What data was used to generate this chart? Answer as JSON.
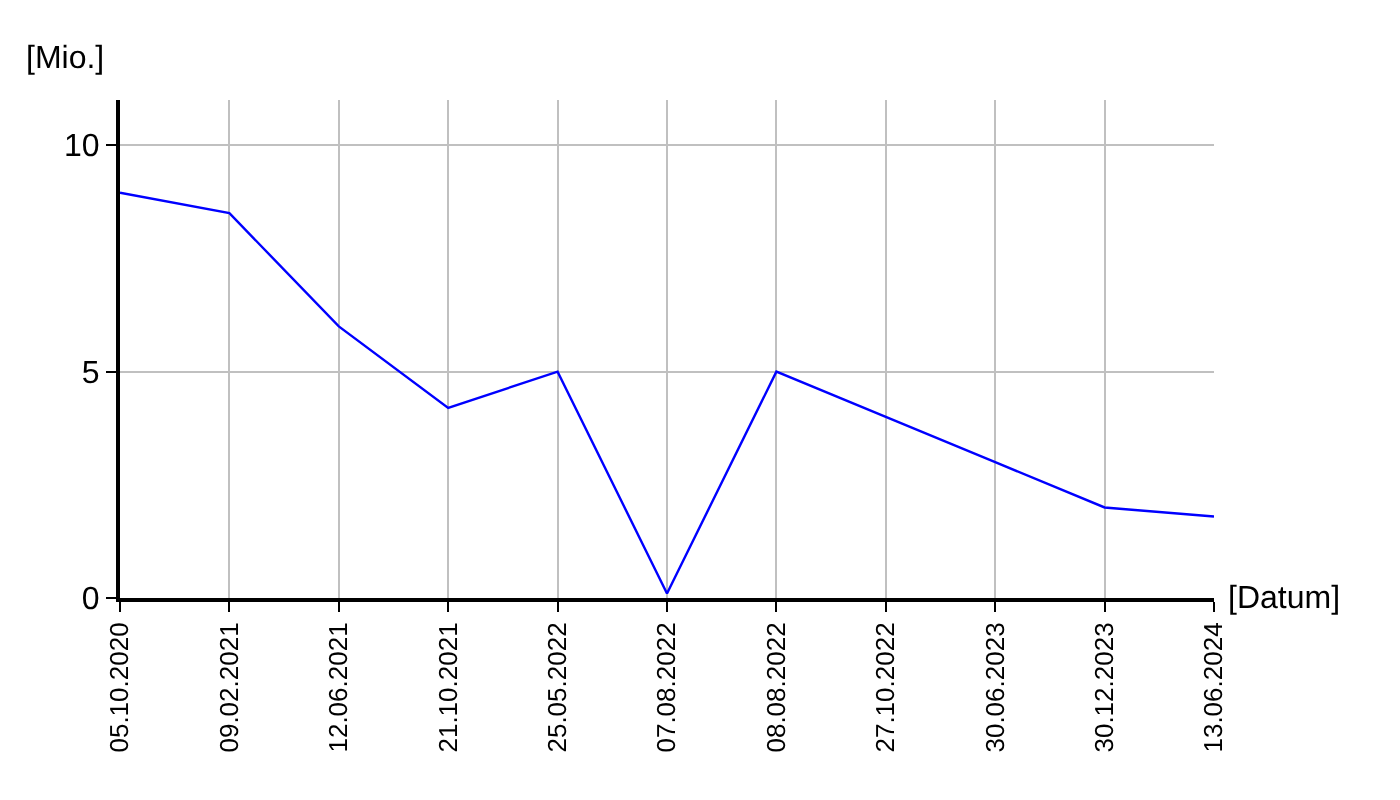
{
  "chart_data": {
    "type": "line",
    "xlabel": "[Datum]",
    "ylabel": "[Mio.]",
    "categories": [
      "05.10.2020",
      "09.02.2021",
      "12.06.2021",
      "21.10.2021",
      "25.05.2022",
      "07.08.2022",
      "08.08.2022",
      "27.10.2022",
      "30.06.2023",
      "30.12.2023",
      "13.06.2024"
    ],
    "series": [
      {
        "color": "#0000ff",
        "values": [
          8.95,
          8.5,
          6.0,
          4.2,
          5.0,
          0.1,
          5.0,
          4.0,
          3.0,
          2.0,
          1.8
        ]
      }
    ],
    "ylim": [
      0,
      11
    ],
    "yticks": [
      0,
      5,
      10
    ],
    "grid": true,
    "marker": "none",
    "line_style": "solid"
  }
}
